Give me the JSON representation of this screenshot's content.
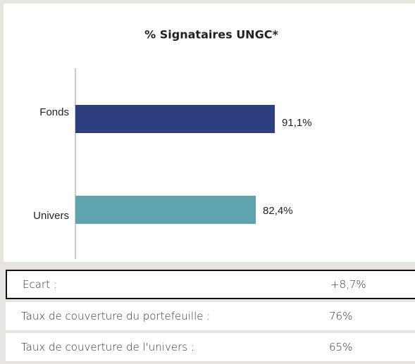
{
  "chart_data": {
    "type": "bar",
    "orientation": "horizontal",
    "title": "% Signataires UNGC*",
    "categories": [
      "Fonds",
      "Univers"
    ],
    "series": [
      {
        "name": null,
        "colors": [
          "#2e3f80",
          "#5fa3ae"
        ],
        "values": [
          91.1,
          82.4
        ],
        "value_labels": [
          "91,1%",
          "82,4%"
        ]
      }
    ],
    "xlim": [
      0,
      100
    ]
  },
  "table": {
    "rows": [
      [
        "Ecart :",
        "+8,7%"
      ],
      [
        "Taux de couverture du portefeuille :",
        "76%"
      ],
      [
        "Taux de couverture de l'univers :",
        "65%"
      ]
    ]
  }
}
